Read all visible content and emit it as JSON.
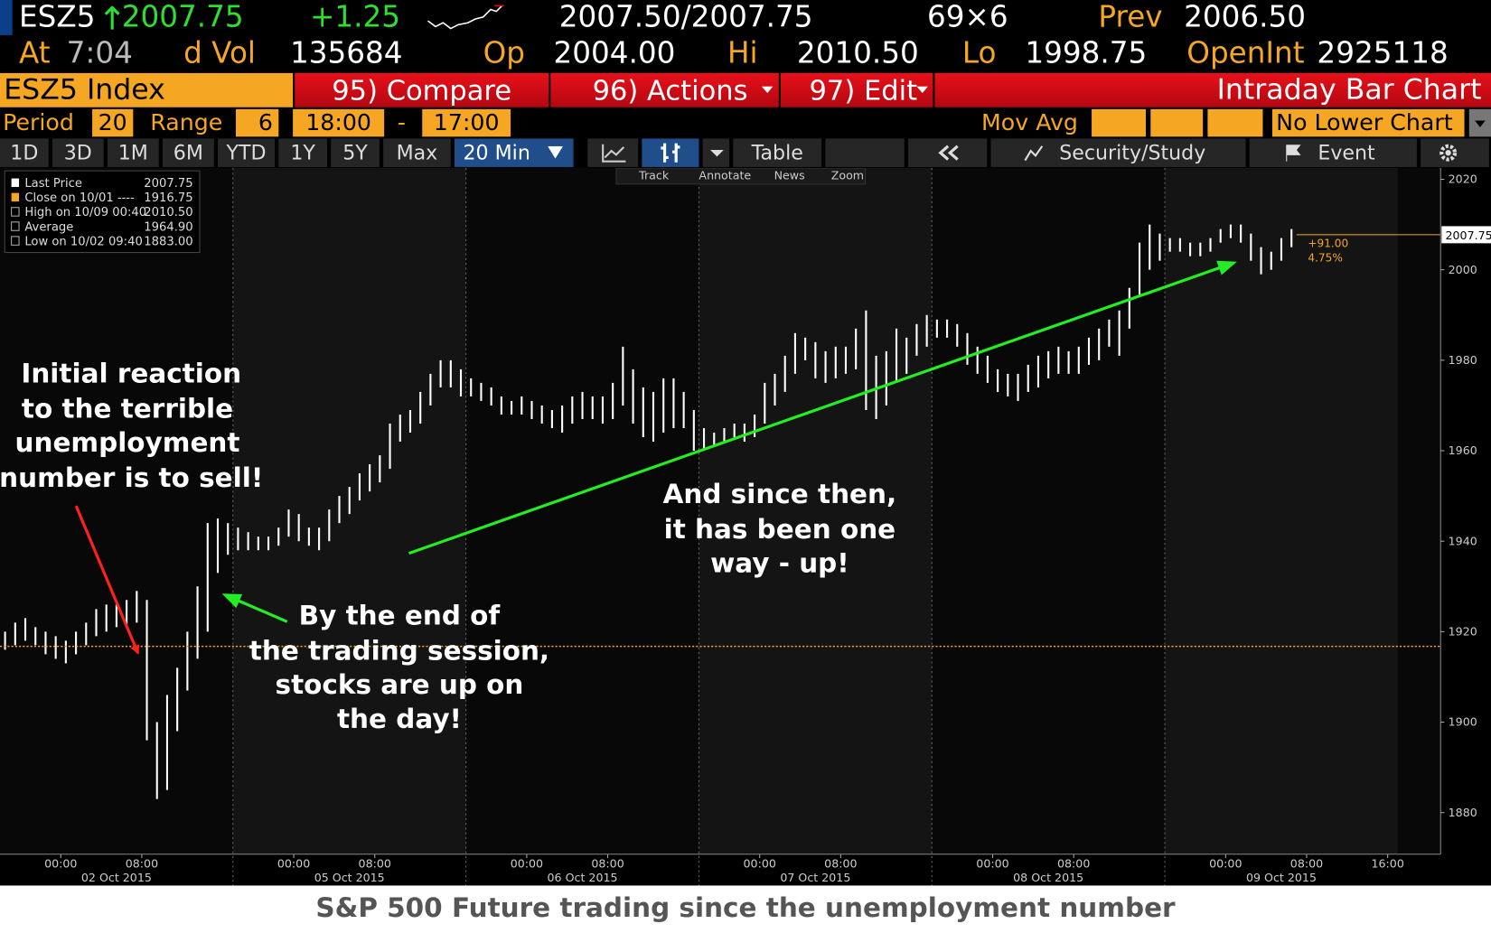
{
  "header": {
    "ticker": "ESZ5",
    "last": "2007.75",
    "change": "+1.25",
    "bid_ask": "2007.50/2007.75",
    "size": "69×6",
    "prev_label": "Prev",
    "prev": "2006.50",
    "time_label": "At",
    "time": "7:04",
    "vol_label": "d Vol",
    "vol": "135684",
    "open_label": "Op",
    "open": "2004.00",
    "hi_label": "Hi",
    "hi": "2010.50",
    "lo_label": "Lo",
    "lo": "1998.75",
    "oi_label": "OpenInt",
    "oi": "2925118"
  },
  "menu": {
    "security": "ESZ5 Index",
    "buttons": [
      "95) Compare",
      "96) Actions",
      "97) Edit"
    ],
    "view": "Intraday Bar Chart"
  },
  "settings": {
    "period_label": "Period",
    "period": "20",
    "range_label": "Range",
    "range": "6",
    "start": "18:00",
    "dash": "-",
    "end": "17:00",
    "mov_avg": "Mov Avg",
    "lower": "No Lower Chart"
  },
  "toolbar": {
    "tabs": [
      "1D",
      "3D",
      "1M",
      "6M",
      "YTD",
      "1Y",
      "5Y",
      "Max"
    ],
    "interval": "20 Min",
    "table": "Table",
    "security_study": "Security/Study",
    "event": "Event"
  },
  "chart_tools": [
    "Track",
    "Annotate",
    "News",
    "Zoom"
  ],
  "chart_data": {
    "type": "range_bar",
    "ylim": [
      1870.8,
      2022.5
    ],
    "yticks": [
      1880,
      1900,
      1920,
      1940,
      1960,
      1980,
      2000,
      2020
    ],
    "bar_color": "#ffffff",
    "reference_color": "#f5a623",
    "legend": [
      {
        "label": "Last Price",
        "value": 2007.75
      },
      {
        "label": "Close on 10/01 ----",
        "value": 1916.75
      },
      {
        "label": "High on 10/09 00:40",
        "value": {
          "value": 2010.5,
          "label": "2010.50"
        }
      },
      {
        "label": "Average",
        "value": {
          "value": 1964.9,
          "label": "1964.90"
        }
      },
      {
        "label": "Low on 10/02 09:40",
        "value": {
          "value": 1883,
          "label": "1883.00"
        }
      }
    ],
    "change_abs": "+91.00",
    "change_pct": "4.75%",
    "sessions": [
      {
        "date": "02 Oct 2015",
        "times": [
          "00:00",
          "08:00"
        ],
        "high": [
          1920,
          1922,
          1923,
          1921,
          1920,
          1919,
          1918,
          1920,
          1922,
          1925,
          1926,
          1926,
          1927,
          1929,
          1927,
          1900,
          1906,
          1912,
          1920,
          1930,
          1944,
          1945,
          1944
        ],
        "low": [
          1916,
          1917,
          1918,
          1917,
          1915,
          1914,
          1913,
          1915,
          1917,
          1919,
          1920,
          1921,
          1921,
          1922,
          1896,
          1883,
          1885,
          1898,
          1907,
          1914,
          1920,
          1933,
          1937
        ]
      },
      {
        "date": "05 Oct 2015",
        "times": [
          "00:00",
          "08:00"
        ],
        "high": [
          1943,
          1942,
          1941,
          1941,
          1943,
          1947,
          1946,
          1943,
          1943,
          1947,
          1950,
          1952,
          1955,
          1957,
          1959,
          1966,
          1968,
          1969,
          1973,
          1977,
          1980,
          1980,
          1978
        ],
        "low": [
          1938,
          1938,
          1938,
          1938,
          1939,
          1941,
          1940,
          1939,
          1938,
          1940,
          1944,
          1946,
          1949,
          1951,
          1953,
          1956,
          1962,
          1964,
          1966,
          1970,
          1974,
          1974,
          1972
        ]
      },
      {
        "date": "06 Oct 2015",
        "times": [
          "00:00",
          "08:00"
        ],
        "high": [
          1976,
          1975,
          1974,
          1972,
          1971,
          1972,
          1971,
          1970,
          1969,
          1970,
          1972,
          1973,
          1972,
          1972,
          1975,
          1983,
          1978,
          1974,
          1973,
          1976,
          1976,
          1973,
          1969
        ],
        "low": [
          1972,
          1971,
          1970,
          1968,
          1968,
          1968,
          1967,
          1966,
          1965,
          1964,
          1966,
          1967,
          1967,
          1966,
          1967,
          1970,
          1966,
          1963,
          1962,
          1964,
          1965,
          1965,
          1960
        ]
      },
      {
        "date": "07 Oct 2015",
        "times": [
          "00:00",
          "08:00"
        ],
        "high": [
          1965,
          1964,
          1965,
          1966,
          1966,
          1968,
          1975,
          1977,
          1981,
          1986,
          1985,
          1984,
          1982,
          1983,
          1983,
          1987,
          1991,
          1981,
          1982,
          1987,
          1985,
          1988,
          1990
        ],
        "low": [
          1960,
          1961,
          1962,
          1963,
          1962,
          1963,
          1966,
          1970,
          1973,
          1977,
          1980,
          1976,
          1975,
          1976,
          1977,
          1978,
          1969,
          1967,
          1970,
          1975,
          1977,
          1981,
          1983
        ]
      },
      {
        "date": "08 Oct 2015",
        "times": [
          "00:00",
          "08:00"
        ],
        "high": [
          1989,
          1989,
          1988,
          1986,
          1983,
          1981,
          1978,
          1977,
          1977,
          1979,
          1981,
          1982,
          1983,
          1982,
          1983,
          1985,
          1987,
          1989,
          1991,
          1996,
          2006,
          2010,
          2008
        ],
        "low": [
          1985,
          1985,
          1983,
          1979,
          1977,
          1975,
          1973,
          1972,
          1971,
          1973,
          1974,
          1976,
          1977,
          1977,
          1977,
          1979,
          1980,
          1983,
          1981,
          1987,
          1994,
          2000,
          2002
        ]
      },
      {
        "date": "09 Oct 2015",
        "times": [
          "00:00",
          "08:00",
          "16:00"
        ],
        "high": [
          2007,
          2007,
          2006,
          2006,
          2007,
          2009,
          2010,
          2010,
          2008,
          2005,
          2004,
          2007,
          2009
        ],
        "low": [
          2004,
          2004,
          2003,
          2003,
          2004,
          2006,
          2007,
          2006,
          2002,
          1999,
          2000,
          2002,
          2005
        ]
      }
    ],
    "annotations": [
      {
        "lines": [
          "Initial reaction",
          "to the terrible",
          "unemployment",
          "number is to sell!"
        ],
        "arrow_color": "#ff2020"
      },
      {
        "lines": [
          "By the end of",
          "the trading session,",
          "stocks are up on",
          "the day!"
        ],
        "arrow_color": "#22ee22"
      },
      {
        "lines": [
          "And since then,",
          "it has been one",
          "way - up!"
        ],
        "arrow_color": "#22ee22"
      }
    ]
  },
  "caption": "S&P 500 Future trading since the unemployment number"
}
